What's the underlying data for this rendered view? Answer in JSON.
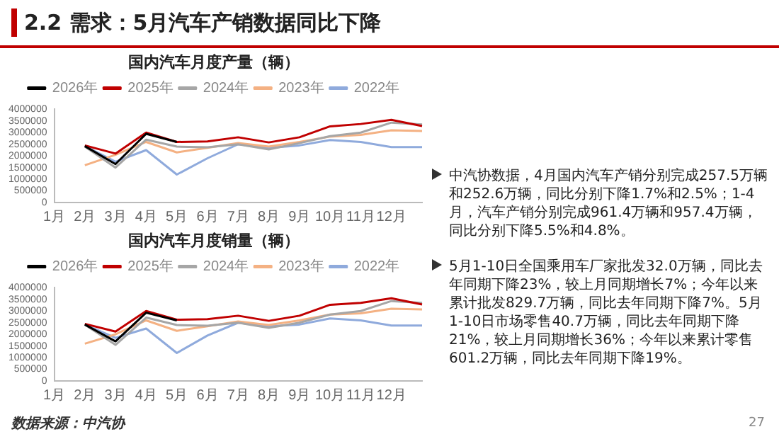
{
  "chart_data": [
    {
      "type": "line",
      "title": "国内汽车月度产量（辆）",
      "categories": [
        "1月",
        "2月",
        "3月",
        "4月",
        "5月",
        "6月",
        "7月",
        "8月",
        "9月",
        "10月",
        "11月",
        "12月",
        null
      ],
      "legend": "top",
      "marker": "none",
      "grid": false,
      "ylim": [
        0,
        4000000
      ],
      "yticks": [
        0,
        500000,
        1000000,
        1500000,
        2000000,
        2500000,
        3000000,
        3500000,
        4000000
      ],
      "series": [
        {
          "name": "2026年",
          "color": "#000000",
          "values": [
            null,
            2420000,
            1650000,
            2950000,
            2600000,
            null,
            null,
            null,
            null,
            null,
            null,
            null,
            null
          ]
        },
        {
          "name": "2025年",
          "color": "#c00000",
          "values": [
            null,
            2450000,
            2100000,
            3000000,
            2600000,
            2620000,
            2800000,
            2580000,
            2800000,
            3270000,
            3370000,
            3550000,
            3280000
          ]
        },
        {
          "name": "2024年",
          "color": "#a6a6a6",
          "values": [
            null,
            2400000,
            1500000,
            2700000,
            2400000,
            2370000,
            2500000,
            2280000,
            2550000,
            2850000,
            3000000,
            3430000,
            3350000
          ]
        },
        {
          "name": "2023年",
          "color": "#f4b183",
          "values": [
            null,
            1600000,
            2050000,
            2600000,
            2150000,
            2350000,
            2550000,
            2400000,
            2600000,
            2830000,
            2900000,
            3100000,
            3070000
          ]
        },
        {
          "name": "2022年",
          "color": "#8faadc",
          "values": [
            null,
            2420000,
            1750000,
            2250000,
            1200000,
            1900000,
            2500000,
            2350000,
            2450000,
            2680000,
            2600000,
            2380000,
            2380000
          ]
        }
      ]
    },
    {
      "type": "line",
      "title": "国内汽车月度销量（辆）",
      "categories": [
        "1月",
        "2月",
        "3月",
        "4月",
        "5月",
        "6月",
        "7月",
        "8月",
        "9月",
        "10月",
        "11月",
        "12月",
        null
      ],
      "legend": "top",
      "marker": "none",
      "grid": false,
      "ylim": [
        0,
        4000000
      ],
      "yticks": [
        0,
        500000,
        1000000,
        1500000,
        2000000,
        2500000,
        3000000,
        3500000,
        4000000
      ],
      "annotations": [
        "数据来源：中汽协"
      ],
      "series": [
        {
          "name": "2026年",
          "color": "#000000",
          "values": [
            null,
            2420000,
            1700000,
            2930000,
            2600000,
            null,
            null,
            null,
            null,
            null,
            null,
            null,
            null
          ]
        },
        {
          "name": "2025年",
          "color": "#c00000",
          "values": [
            null,
            2450000,
            2120000,
            3000000,
            2630000,
            2650000,
            2800000,
            2580000,
            2800000,
            3270000,
            3350000,
            3550000,
            3280000
          ]
        },
        {
          "name": "2024年",
          "color": "#a6a6a6",
          "values": [
            null,
            2420000,
            1550000,
            2720000,
            2400000,
            2370000,
            2500000,
            2280000,
            2500000,
            2850000,
            3000000,
            3430000,
            3350000
          ]
        },
        {
          "name": "2023年",
          "color": "#f4b183",
          "values": [
            null,
            1600000,
            2000000,
            2600000,
            2150000,
            2350000,
            2550000,
            2400000,
            2600000,
            2850000,
            2900000,
            3100000,
            3070000
          ]
        },
        {
          "name": "2022年",
          "color": "#8faadc",
          "values": [
            null,
            2420000,
            1850000,
            2250000,
            1200000,
            1950000,
            2500000,
            2350000,
            2420000,
            2680000,
            2600000,
            2380000,
            2380000
          ]
        }
      ]
    },
    {
      "type": "other",
      "title": "2.2 需求：5月汽车产销数据同比下降",
      "annotations": [
        "中汽协数据，4月国内汽车产销分别完成257.5万辆和252.6万辆，同比分别下降1.7%和2.5%；1-4月，汽车产销分别完成961.4万辆和957.4万辆，同比分别下降5.5%和4.8%。",
        "5月1-10日全国乘用车厂家批发32.0万辆，同比去年同期下降23%，较上月同期增长7%；今年以来累计批发829.7万辆，同比去年同期下降7%。5月1-10日市场零售40.7万辆，同比去年同期下降21%，较上月同期增长36%；今年以来累计零售601.2万辆，同比去年同期下降19%。",
        "27"
      ]
    }
  ]
}
